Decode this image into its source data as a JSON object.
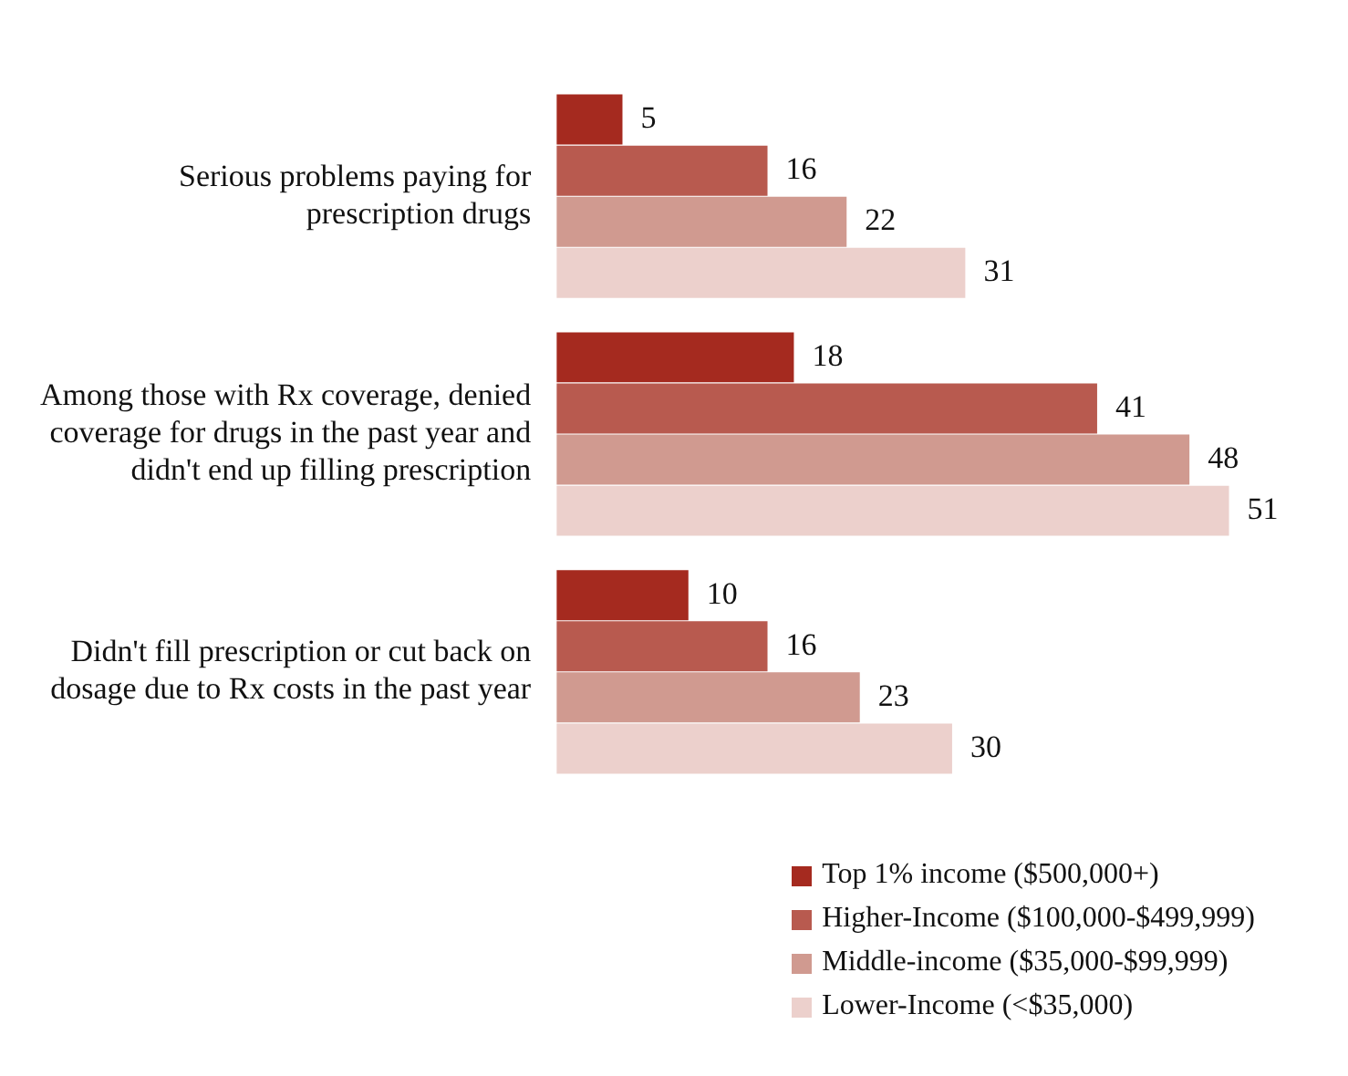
{
  "chart_data": {
    "type": "bar",
    "orientation": "horizontal",
    "categories": [
      "Serious problems paying for prescription drugs",
      "Among those with Rx coverage, denied coverage for drugs in the past year and didn't end up filling prescription",
      "Didn't fill prescription or cut back on dosage due to Rx costs in the past year"
    ],
    "series": [
      {
        "name": "Top 1% income ($500,000+)",
        "color": "#a52a1f",
        "values": [
          5,
          18,
          10
        ]
      },
      {
        "name": "Higher-Income ($100,000-$499,999)",
        "color": "#b85a4f",
        "values": [
          16,
          41,
          16
        ]
      },
      {
        "name": "Middle-income ($35,000-$99,999)",
        "color": "#d09a90",
        "values": [
          22,
          48,
          23
        ]
      },
      {
        "name": "Lower-Income (<$35,000)",
        "color": "#ecd0cc",
        "values": [
          31,
          51,
          30
        ]
      }
    ],
    "data_labels": true,
    "legend": "bottom right"
  }
}
